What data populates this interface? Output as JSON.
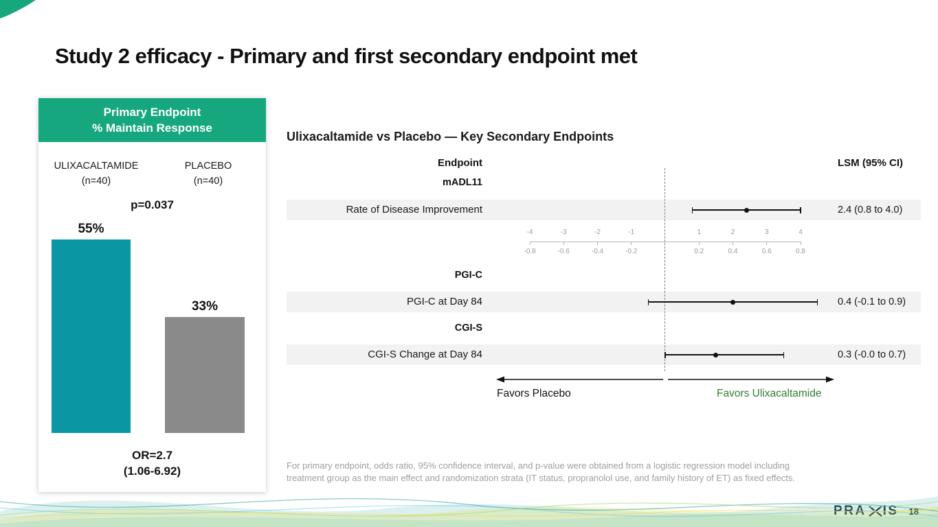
{
  "slide": {
    "title": "Study 2 efficacy - Primary and first secondary endpoint met",
    "page_number": "18",
    "logo_text_left": "PRA",
    "logo_text_right": "IS"
  },
  "colors": {
    "green_header": "#17a77e",
    "teal_bar": "#0b96a4",
    "gray_bar": "#8a8a8a",
    "favors_green": "#2e7d32",
    "stripe": "#f2f2f2",
    "logo_navy": "#1b2b4c"
  },
  "primary_card": {
    "header": [
      "Primary Endpoint",
      "% Maintain Response"
    ],
    "groups": [
      {
        "name": "ULIXACALTAMIDE",
        "n": "(n=40)"
      },
      {
        "name": "PLACEBO",
        "n": "(n=40)"
      }
    ],
    "p_value": "p=0.037",
    "or_line1": "OR=2.7",
    "or_line2": "(1.06-6.92)"
  },
  "footnote": "For primary endpoint, odds ratio, 95% confidence interval, and p-value were obtained from a logistic regression model including treatment group as the main effect and randomization strata (IT status, propranolol use, and family history of ET) as fixed effects.",
  "chart_data": [
    {
      "type": "bar",
      "title": "Primary Endpoint % Maintain Response",
      "categories": [
        "ULIXACALTAMIDE (n=40)",
        "PLACEBO (n=40)"
      ],
      "values": [
        55,
        33
      ],
      "value_labels": [
        "55%",
        "33%"
      ],
      "bar_colors": [
        "#0b96a4",
        "#8a8a8a"
      ],
      "annotations": [
        "p=0.037",
        "OR=2.7 (1.06-6.92)"
      ],
      "ylim": [
        0,
        100
      ],
      "grid": false
    },
    {
      "type": "forest",
      "title": "Ulixacaltamide vs Placebo — Key Secondary Endpoints",
      "columns": [
        "Endpoint",
        "LSM (95% CI)"
      ],
      "axis_top_ticks": [
        -4,
        -3,
        -2,
        -1,
        1,
        2,
        3,
        4
      ],
      "axis_bottom_ticks": [
        -0.8,
        -0.6,
        -0.4,
        -0.2,
        0.2,
        0.4,
        0.6,
        0.8
      ],
      "zero_line": 0,
      "rows": [
        {
          "group": "mADL11",
          "endpoint": "Rate of Disease Improvement",
          "estimate": 2.4,
          "ci_low": 0.8,
          "ci_high": 4.0,
          "label": "2.4 (0.8 to 4.0)",
          "scale_max": 4
        },
        {
          "group": "PGI-C",
          "endpoint": "PGI-C at Day 84",
          "estimate": 0.4,
          "ci_low": -0.1,
          "ci_high": 0.9,
          "label": "0.4 (-0.1 to 0.9)",
          "scale_max": 0.8
        },
        {
          "group": "CGI-S",
          "endpoint": "CGI-S Change at Day 84",
          "estimate": 0.3,
          "ci_low": -0.0,
          "ci_high": 0.7,
          "label": "0.3 (-0.0 to 0.7)",
          "scale_max": 0.8
        }
      ],
      "favors_left": "Favors Placebo",
      "favors_right": "Favors Ulixacaltamide"
    }
  ]
}
